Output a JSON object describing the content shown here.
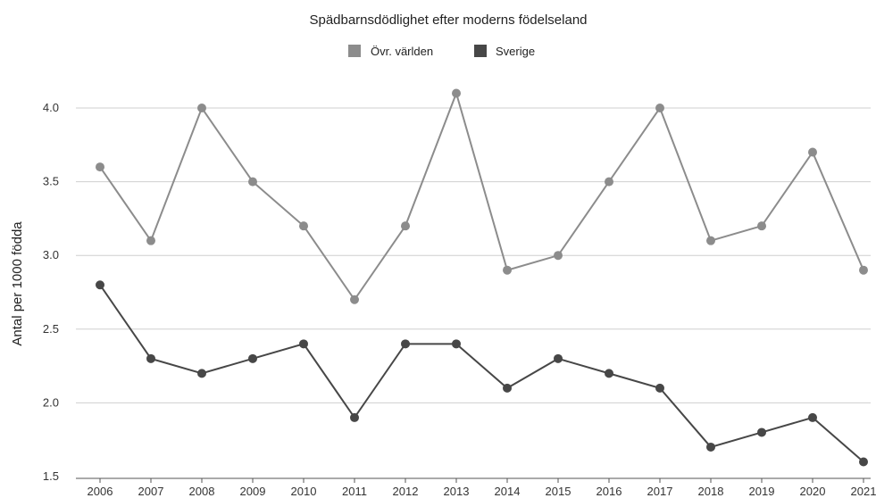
{
  "chart_data": {
    "type": "line",
    "title": "Spädbarnsdödlighet efter moderns födelseland",
    "xlabel": "",
    "ylabel": "Antal per 1000 födda",
    "categories": [
      "2006",
      "2007",
      "2008",
      "2009",
      "2010",
      "2011",
      "2012",
      "2013",
      "2014",
      "2015",
      "2016",
      "2017",
      "2018",
      "2019",
      "2020",
      "2021"
    ],
    "ylim": [
      1.5,
      4.2
    ],
    "yticks": [
      "1.5",
      "2.0",
      "2.5",
      "3.0",
      "3.5",
      "4.0"
    ],
    "grid": true,
    "legend_position": "top-center",
    "series": [
      {
        "name": "Övr. världen",
        "color": "#8c8c8c",
        "values": [
          3.6,
          3.1,
          4.0,
          3.5,
          3.2,
          2.7,
          3.2,
          4.1,
          2.9,
          3.0,
          3.5,
          4.0,
          3.1,
          3.2,
          3.7,
          2.9
        ]
      },
      {
        "name": "Sverige",
        "color": "#474747",
        "values": [
          2.8,
          2.3,
          2.2,
          2.3,
          2.4,
          1.9,
          2.4,
          2.4,
          2.1,
          2.3,
          2.2,
          2.1,
          1.7,
          1.8,
          1.9,
          1.6
        ]
      }
    ]
  }
}
